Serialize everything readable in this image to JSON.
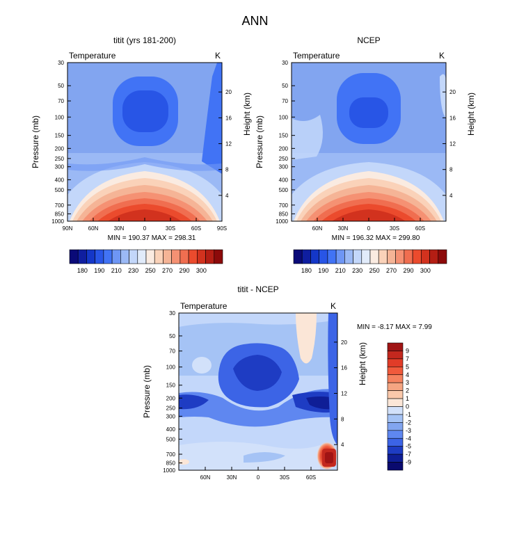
{
  "page": {
    "title": "ANN"
  },
  "chart_data": [
    {
      "type": "heatmap",
      "title": "titit (yrs 181-200)",
      "left_label": "Temperature",
      "right_label": "K",
      "ylabel": "Pressure (mb)",
      "ylabel_right": "Height (km)",
      "x_ticks": [
        "90N",
        "60N",
        "30N",
        "0",
        "30S",
        "60S",
        "90S"
      ],
      "y_ticks": [
        "30",
        "50",
        "70",
        "100",
        "150",
        "200",
        "250",
        "300",
        "400",
        "500",
        "700",
        "850",
        "1000"
      ],
      "y_right_ticks": [
        "20",
        "16",
        "12",
        "8",
        "4"
      ],
      "stats": "MIN = 190.37   MAX = 298.31",
      "colorbar_labels": [
        "180",
        "190",
        "210",
        "230",
        "250",
        "270",
        "290",
        "300"
      ],
      "colorbar_colors": [
        "#0a0a78",
        "#0f1ea0",
        "#1437c8",
        "#2855e6",
        "#4173f5",
        "#6e96f5",
        "#9bb9f5",
        "#c3d7fa",
        "#e1ebfa",
        "#faebe1",
        "#fad2b9",
        "#f5b496",
        "#f59173",
        "#f06e50",
        "#eb4b2d",
        "#d2321e",
        "#b41e14",
        "#8c0a0a"
      ]
    },
    {
      "type": "heatmap",
      "title": "NCEP",
      "left_label": "Temperature",
      "right_label": "K",
      "ylabel": "Pressure (mb)",
      "ylabel_right": "Height (km)",
      "x_ticks": [
        "60N",
        "30N",
        "0",
        "30S",
        "60S"
      ],
      "y_ticks": [
        "30",
        "50",
        "70",
        "100",
        "150",
        "200",
        "250",
        "300",
        "400",
        "500",
        "700",
        "850",
        "1000"
      ],
      "y_right_ticks": [
        "20",
        "16",
        "12",
        "8",
        "4"
      ],
      "stats": "MIN = 196.32   MAX = 299.80",
      "colorbar_labels": [
        "180",
        "190",
        "210",
        "230",
        "250",
        "270",
        "290",
        "300"
      ]
    },
    {
      "type": "heatmap",
      "title": "titit - NCEP",
      "left_label": "Temperature",
      "right_label": "K",
      "ylabel": "Pressure (mb)",
      "ylabel_right": "Height (km)",
      "x_ticks": [
        "60N",
        "30N",
        "0",
        "30S",
        "60S"
      ],
      "y_ticks": [
        "30",
        "50",
        "70",
        "100",
        "150",
        "200",
        "250",
        "300",
        "400",
        "500",
        "700",
        "850",
        "1000"
      ],
      "y_right_ticks": [
        "20",
        "16",
        "12",
        "8",
        "4"
      ],
      "stats": "MIN =  -8.17   MAX =   7.99",
      "colorbar_labels": [
        "9",
        "7",
        "5",
        "4",
        "3",
        "2",
        "1",
        "0",
        "-1",
        "-2",
        "-3",
        "-4",
        "-5",
        "-7",
        "-9"
      ],
      "colorbar_colors": [
        "#a01414",
        "#c3281e",
        "#e13c28",
        "#f05a3c",
        "#f5825f",
        "#f5a582",
        "#fac8aa",
        "#fbe6d7",
        "#d2e1fa",
        "#a5c3f5",
        "#82a5f0",
        "#5f87f0",
        "#3c64e6",
        "#1e3cc3",
        "#0f1e96",
        "#0a0a6e"
      ]
    }
  ]
}
